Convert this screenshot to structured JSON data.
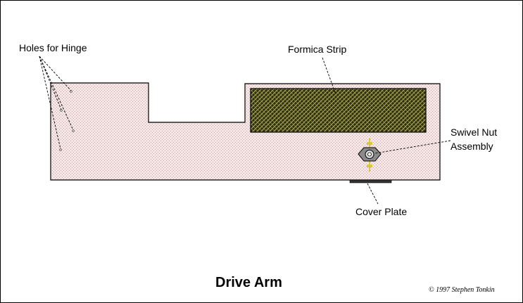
{
  "diagram": {
    "title": "Drive Arm",
    "copyright": "© 1997 Stephen Tonkin",
    "labels": {
      "holes_for_hinge": "Holes for Hinge",
      "formica_strip": "Formica Strip",
      "swivel_nut_line1": "Swivel Nut",
      "swivel_nut_line2": "Assembly",
      "cover_plate": "Cover Plate"
    },
    "colors": {
      "arm_fill": "#f3e6e6",
      "formica_fill": "#2f2f12",
      "formica_pattern": "#b7b35a",
      "outline": "#000000",
      "background": "#ffffff"
    }
  }
}
